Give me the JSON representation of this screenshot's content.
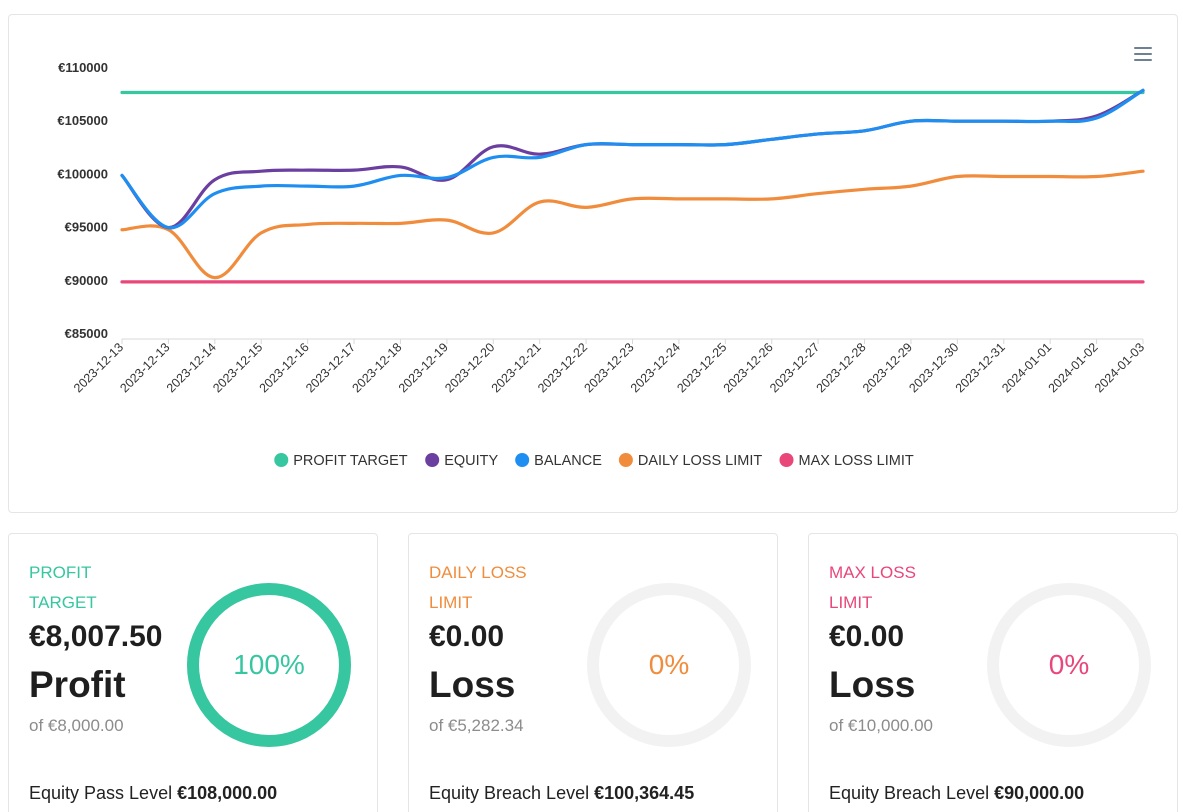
{
  "chart_data": {
    "type": "line",
    "title": "",
    "xlabel": "",
    "ylabel": "",
    "ylim": [
      85000,
      110000
    ],
    "y_ticks": [
      "€110000",
      "€105000",
      "€100000",
      "€95000",
      "€90000",
      "€85000"
    ],
    "categories": [
      "2023-12-13",
      "2023-12-13",
      "2023-12-14",
      "2023-12-15",
      "2023-12-16",
      "2023-12-17",
      "2023-12-18",
      "2023-12-19",
      "2023-12-20",
      "2023-12-21",
      "2023-12-22",
      "2023-12-23",
      "2023-12-24",
      "2023-12-25",
      "2023-12-26",
      "2023-12-27",
      "2023-12-28",
      "2023-12-29",
      "2023-12-30",
      "2023-12-31",
      "2024-01-01",
      "2024-01-02",
      "2024-01-03"
    ],
    "series": [
      {
        "name": "PROFIT TARGET",
        "color": "#36c6a0",
        "values": [
          107700,
          107700,
          107700,
          107700,
          107700,
          107700,
          107700,
          107700,
          107700,
          107700,
          107700,
          107700,
          107700,
          107700,
          107700,
          107700,
          107700,
          107700,
          107700,
          107700,
          107700,
          107700,
          107700
        ]
      },
      {
        "name": "EQUITY",
        "color": "#6b3fa0",
        "values": [
          99900,
          95000,
          99500,
          100300,
          100400,
          100400,
          100700,
          99500,
          102600,
          101900,
          102800,
          102800,
          102800,
          102800,
          103300,
          103800,
          104100,
          105000,
          105000,
          105000,
          105000,
          105500,
          107900
        ]
      },
      {
        "name": "BALANCE",
        "color": "#1f8ef1",
        "values": [
          99900,
          95000,
          98200,
          98900,
          98900,
          98900,
          99900,
          99700,
          101600,
          101600,
          102800,
          102800,
          102800,
          102800,
          103300,
          103800,
          104100,
          105000,
          105000,
          105000,
          105000,
          105300,
          107900
        ]
      },
      {
        "name": "DAILY LOSS LIMIT",
        "color": "#f08c3c",
        "values": [
          94800,
          94800,
          90300,
          94500,
          95300,
          95400,
          95400,
          95700,
          94500,
          97400,
          96900,
          97700,
          97700,
          97700,
          97700,
          98200,
          98600,
          98900,
          99800,
          99800,
          99800,
          99800,
          100300
        ]
      },
      {
        "name": "MAX LOSS LIMIT",
        "color": "#e9467a",
        "values": [
          89900,
          89900,
          89900,
          89900,
          89900,
          89900,
          89900,
          89900,
          89900,
          89900,
          89900,
          89900,
          89900,
          89900,
          89900,
          89900,
          89900,
          89900,
          89900,
          89900,
          89900,
          89900,
          89900
        ]
      }
    ],
    "legend": "bottom-center"
  },
  "cards": [
    {
      "title_line1": "PROFIT",
      "title_line2": "TARGET",
      "color": "#36c6a0",
      "amount": "€8,007.50",
      "word": "Profit",
      "of_text": "of €8,000.00",
      "percent_label": "100%",
      "percent": 100,
      "level_label": "Equity Pass Level",
      "level_value": "€108,000.00"
    },
    {
      "title_line1": "DAILY LOSS",
      "title_line2": "LIMIT",
      "color": "#f08c3c",
      "amount": "€0.00",
      "word": "Loss",
      "of_text": "of €5,282.34",
      "percent_label": "0%",
      "percent": 0,
      "level_label": "Equity Breach Level",
      "level_value": "€100,364.45"
    },
    {
      "title_line1": "MAX LOSS",
      "title_line2": "LIMIT",
      "color": "#e9467a",
      "amount": "€0.00",
      "word": "Loss",
      "of_text": "of €10,000.00",
      "percent_label": "0%",
      "percent": 0,
      "level_label": "Equity Breach Level",
      "level_value": "€90,000.00"
    }
  ]
}
